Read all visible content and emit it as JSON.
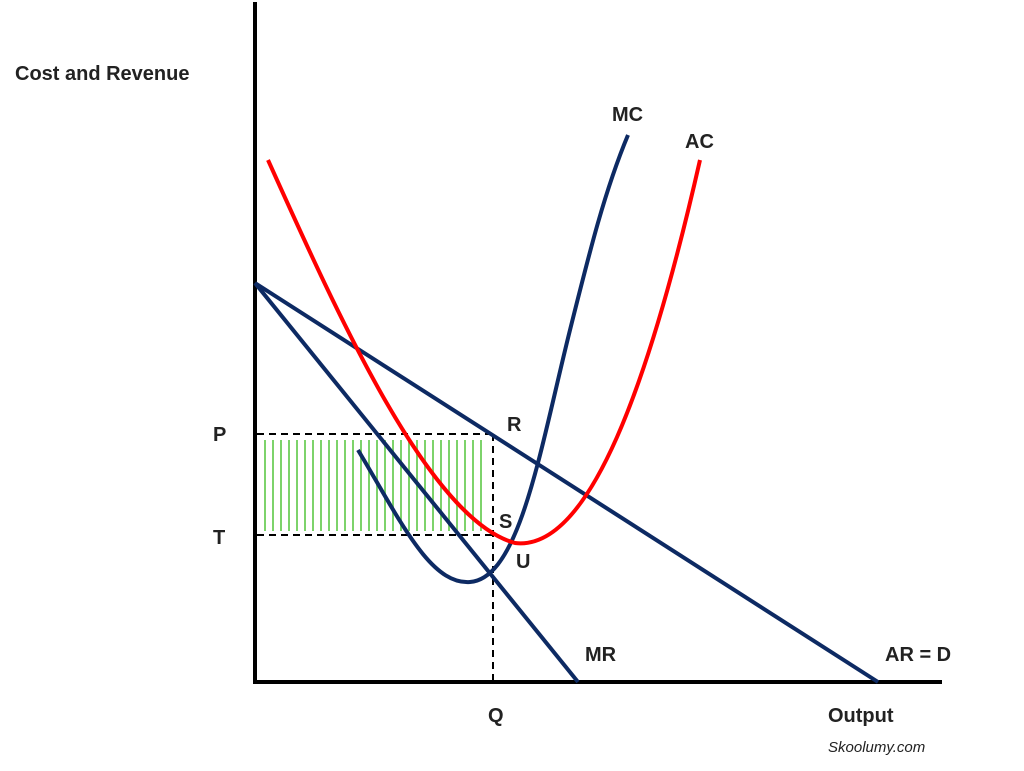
{
  "axes": {
    "y_label": "Cost and Revenue",
    "x_label": "Output"
  },
  "curves": {
    "mc": "MC",
    "ac": "AC",
    "mr": "MR",
    "ar": "AR = D"
  },
  "points": {
    "p": "P",
    "t": "T",
    "r": "R",
    "s": "S",
    "u": "U",
    "q": "Q"
  },
  "credit": "Skoolumy.com"
}
